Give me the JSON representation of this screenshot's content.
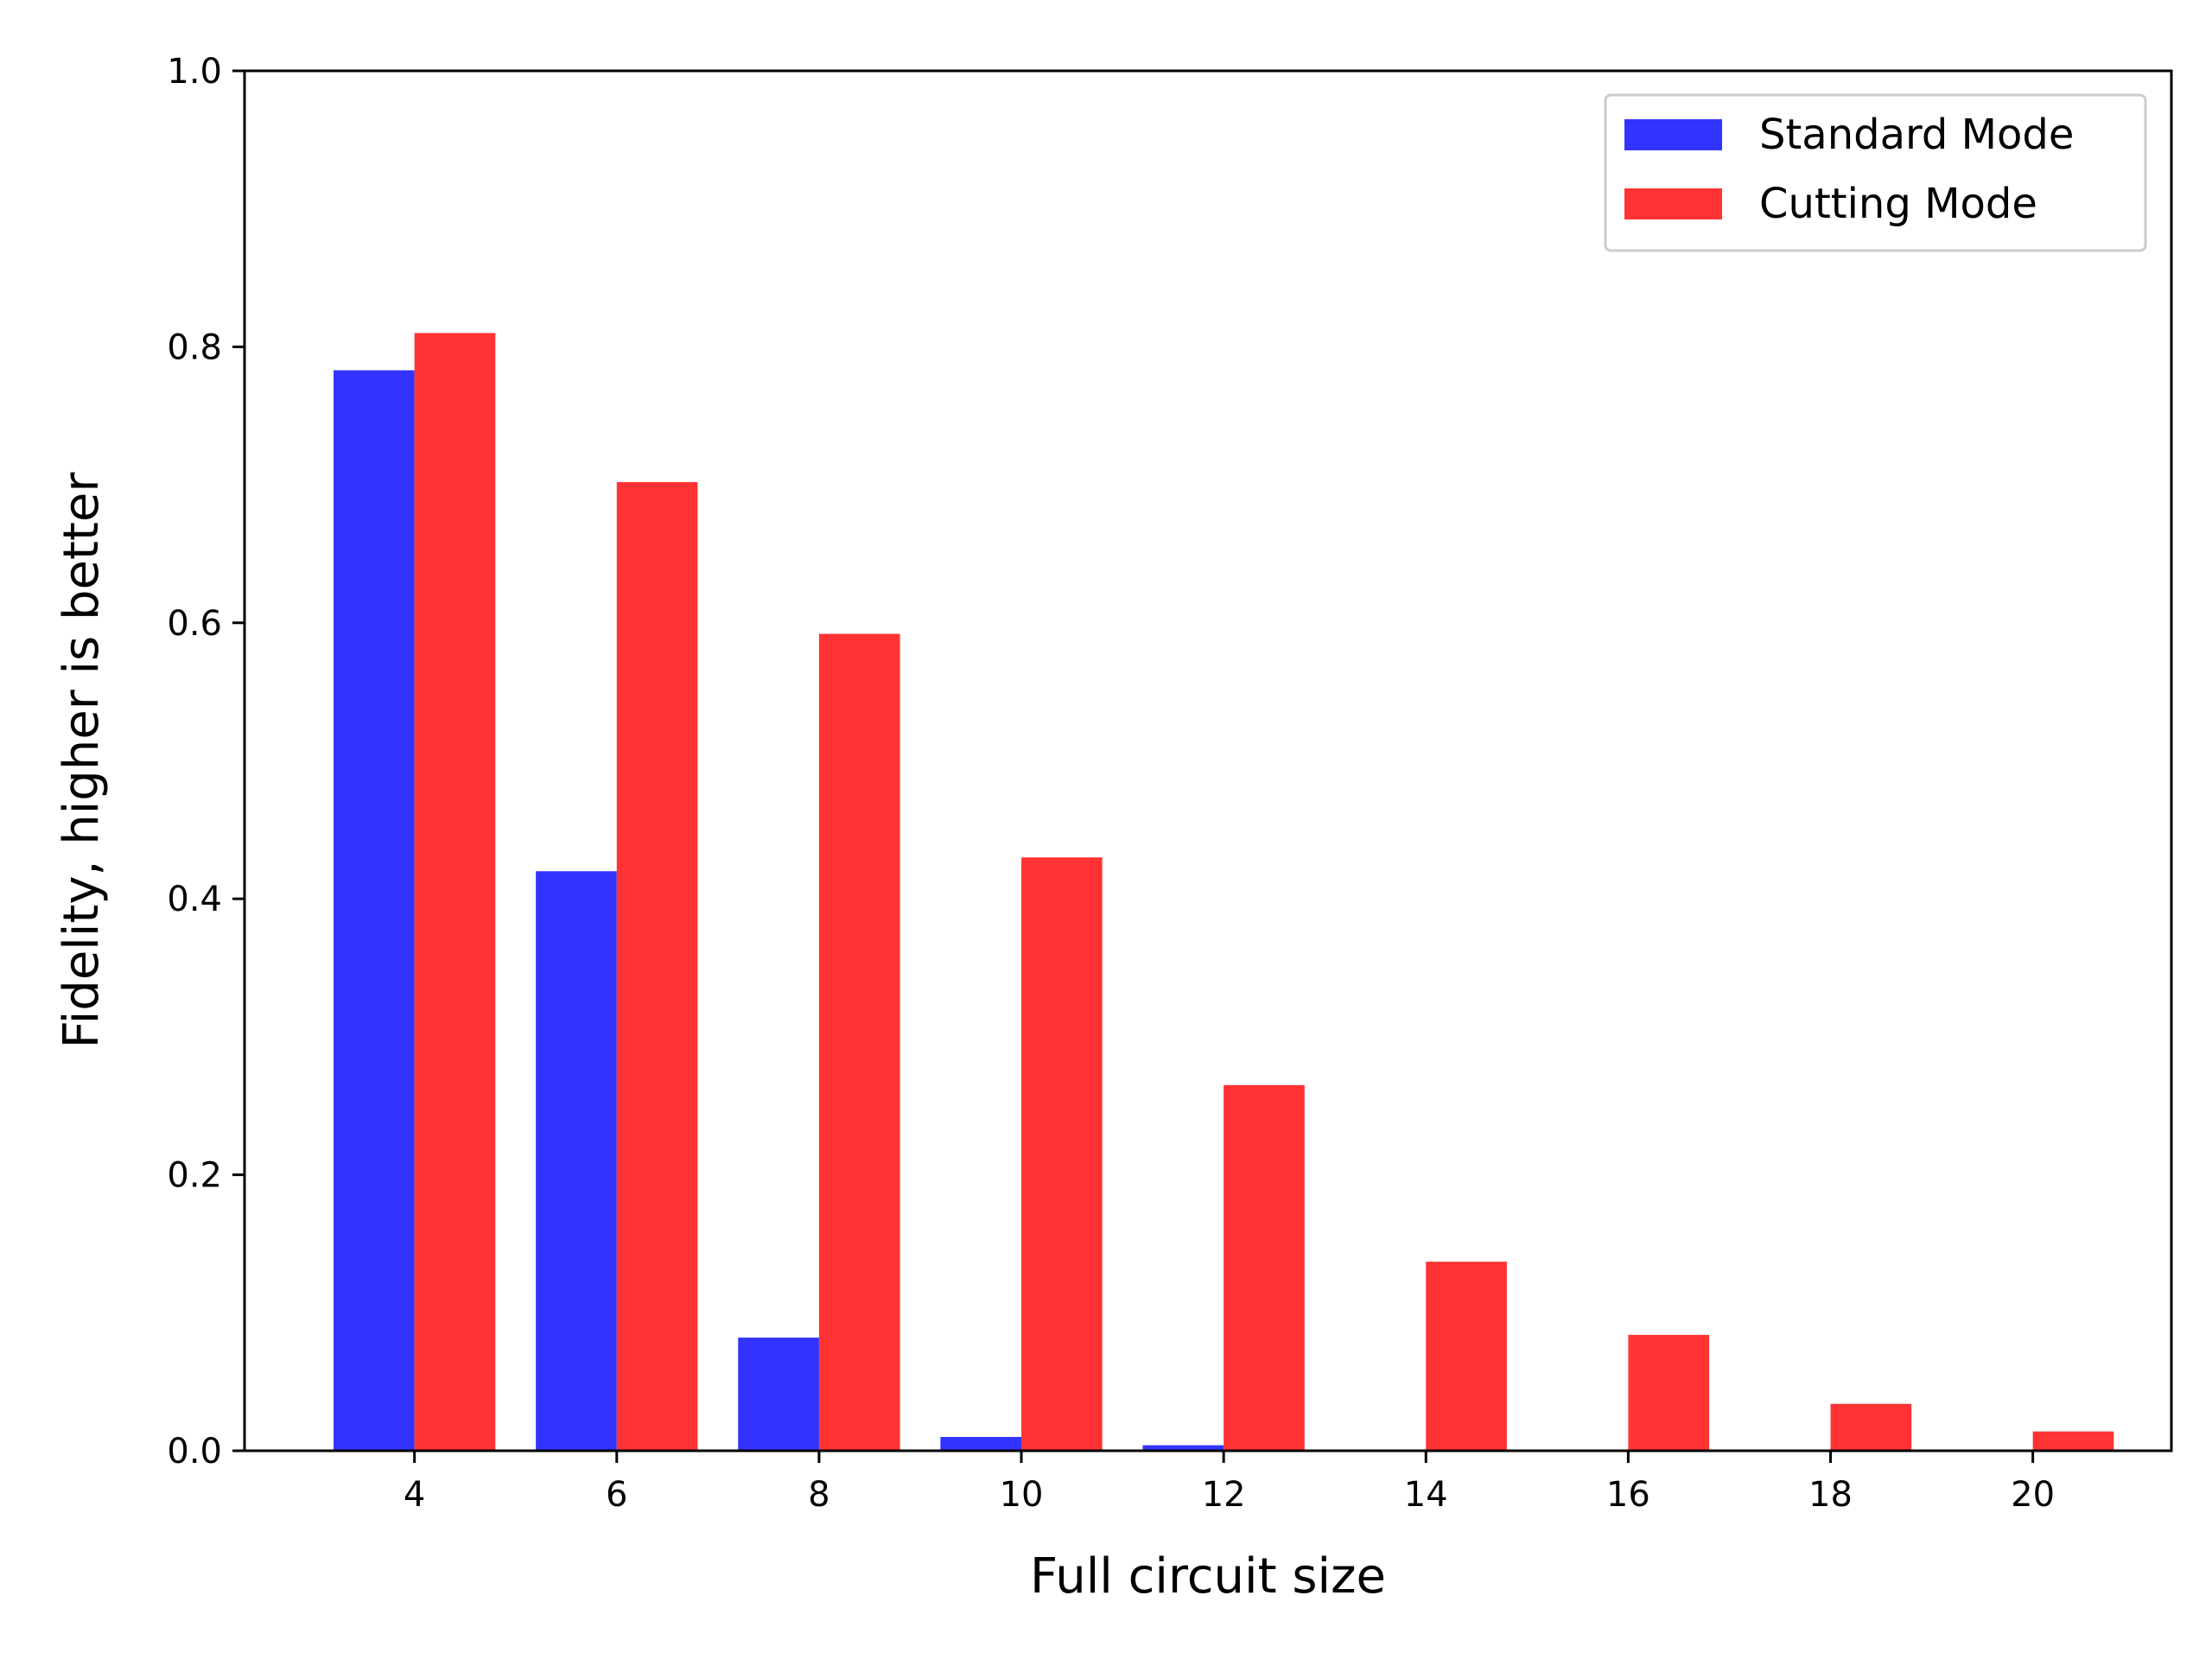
{
  "chart_data": {
    "type": "bar",
    "categories": [
      "4",
      "6",
      "8",
      "10",
      "12",
      "14",
      "16",
      "18",
      "20"
    ],
    "series": [
      {
        "name": "Standard Mode",
        "color": "#3333ff",
        "values": [
          0.783,
          0.42,
          0.082,
          0.01,
          0.004,
          0,
          0,
          0,
          0
        ]
      },
      {
        "name": "Cutting Mode",
        "color": "#ff3333",
        "values": [
          0.81,
          0.702,
          0.592,
          0.43,
          0.265,
          0.137,
          0.084,
          0.034,
          0.014
        ]
      }
    ],
    "xlabel": "Full circuit size",
    "ylabel": "Fidelity, higher is better",
    "ylim": [
      0,
      1.0
    ],
    "yticks": [
      "0.0",
      "0.2",
      "0.4",
      "0.6",
      "0.8",
      "1.0"
    ],
    "grid": false,
    "legend_position": "top-right"
  }
}
